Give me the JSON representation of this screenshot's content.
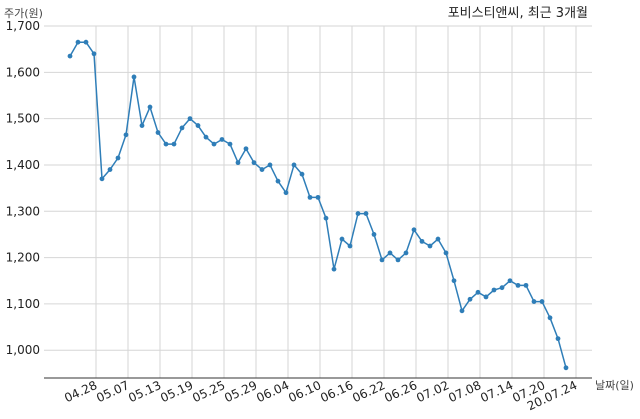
{
  "chart_data": {
    "type": "line",
    "title": "포비스티앤씨, 최근 3개월",
    "ylabel": "주가(원)",
    "xlabel": "날짜(일)",
    "ylim": [
      940,
      1700
    ],
    "yticks": [
      1000,
      1100,
      1200,
      1300,
      1400,
      1500,
      1600,
      1700
    ],
    "ytick_labels": [
      "1,000",
      "1,100",
      "1,200",
      "1,300",
      "1,400",
      "1,500",
      "1,600",
      "1,700"
    ],
    "xtick_labels": [
      "04.28",
      "05.07",
      "05.13",
      "05.19",
      "05.25",
      "05.29",
      "06.04",
      "06.10",
      "06.16",
      "06.22",
      "06.26",
      "07.02",
      "07.08",
      "07.14",
      "07.20",
      "20.07.24"
    ],
    "grid": true,
    "line_color": "#2f7eb8",
    "series": [
      {
        "values": [
          1635,
          1665,
          1665,
          1640,
          1370,
          1390,
          1415,
          1465,
          1590,
          1485,
          1525,
          1470,
          1445,
          1445,
          1480,
          1500,
          1485,
          1460,
          1445,
          1455,
          1445,
          1405,
          1435,
          1405,
          1390,
          1400,
          1365,
          1340,
          1400,
          1380,
          1330,
          1330,
          1285,
          1175,
          1240,
          1225,
          1295,
          1295,
          1250,
          1195,
          1210,
          1195,
          1210,
          1260,
          1235,
          1225,
          1240,
          1210,
          1150,
          1085,
          1110,
          1125,
          1115,
          1130,
          1135,
          1150,
          1140,
          1140,
          1105,
          1105,
          1070,
          1025,
          962
        ]
      }
    ]
  }
}
